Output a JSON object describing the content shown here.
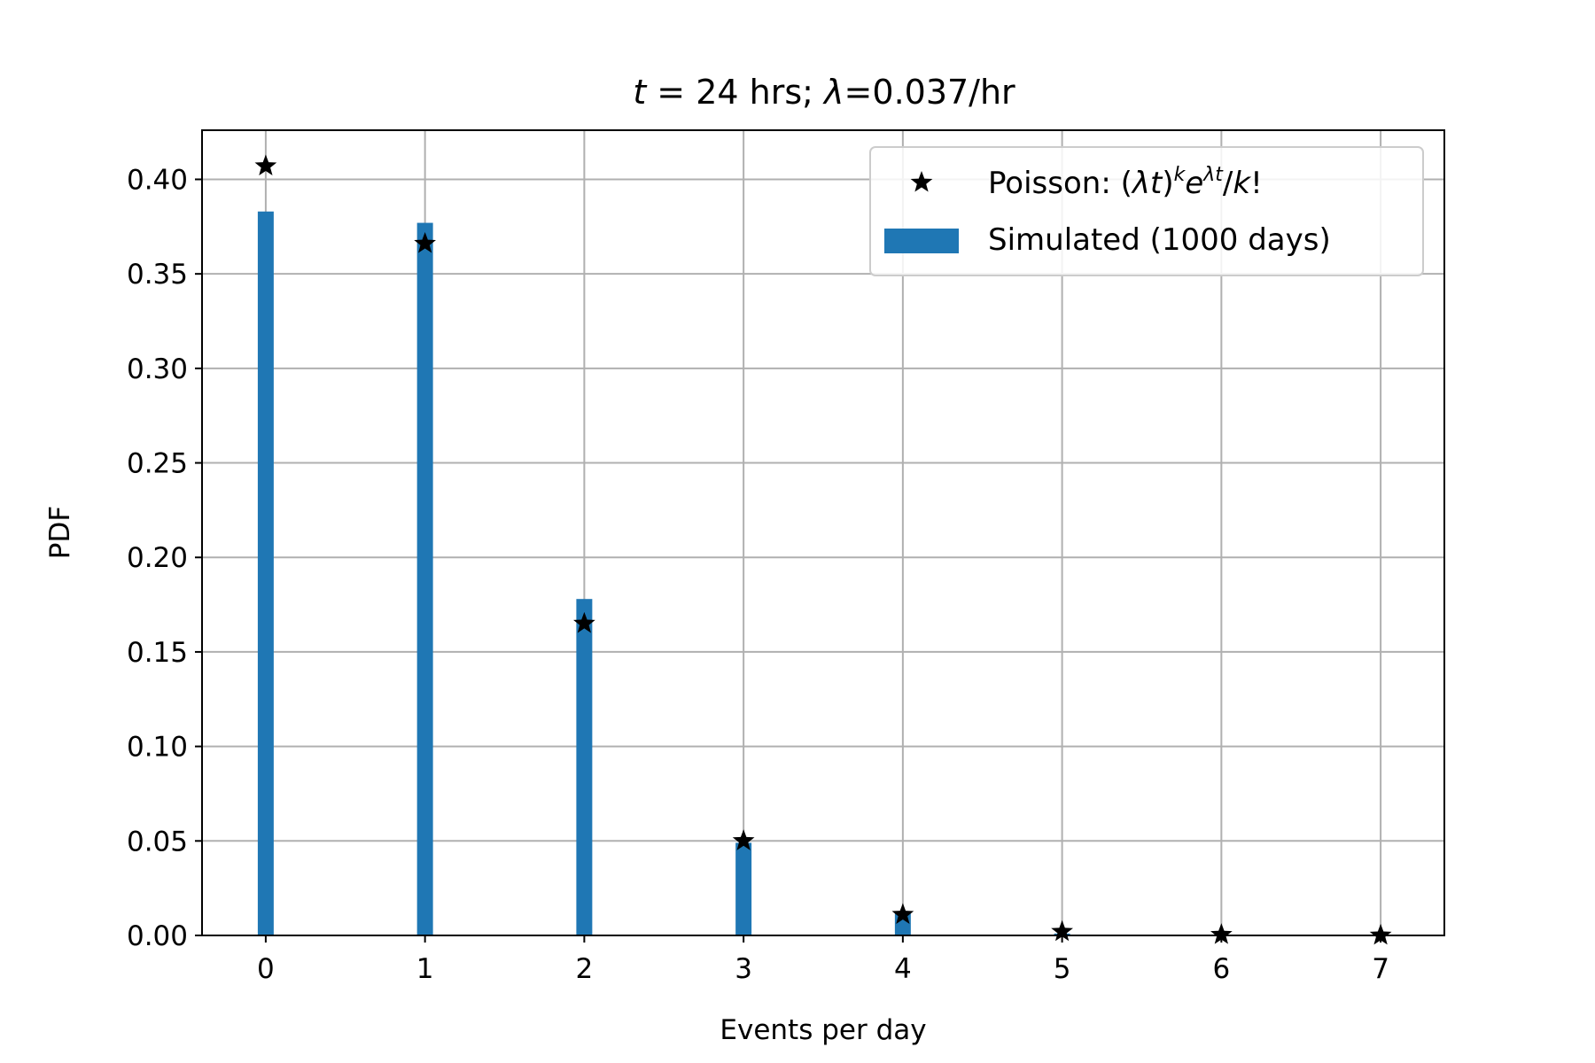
{
  "chart_data": {
    "type": "bar",
    "title": "t = 24 hrs; λ=0.037/hr",
    "xlabel": "Events per day",
    "ylabel": "PDF",
    "xlim": [
      -0.4,
      7.4
    ],
    "ylim": [
      0,
      0.426
    ],
    "grid": true,
    "legend_position": "top-right",
    "x_ticks": [
      "0",
      "1",
      "2",
      "3",
      "4",
      "5",
      "6",
      "7"
    ],
    "y_ticks": [
      "0.00",
      "0.05",
      "0.10",
      "0.15",
      "0.20",
      "0.25",
      "0.30",
      "0.35",
      "0.40"
    ],
    "categories": [
      0,
      1,
      2,
      3,
      4,
      5,
      6,
      7
    ],
    "series": [
      {
        "name": "Simulated (1000 days)",
        "kind": "bar",
        "color": "#1f77b4",
        "values": [
          0.383,
          0.377,
          0.178,
          0.049,
          0.012,
          0.001,
          0.0,
          0.0
        ]
      },
      {
        "name": "Poisson: (λt)^k e^λt/k!",
        "kind": "marker",
        "color": "#000000",
        "values": [
          0.407,
          0.366,
          0.165,
          0.05,
          0.011,
          0.002,
          0.0004,
          5e-05
        ]
      }
    ],
    "legend": {
      "poisson_prefix": "Poisson: ",
      "simulated": "Simulated (1000 days)"
    }
  }
}
